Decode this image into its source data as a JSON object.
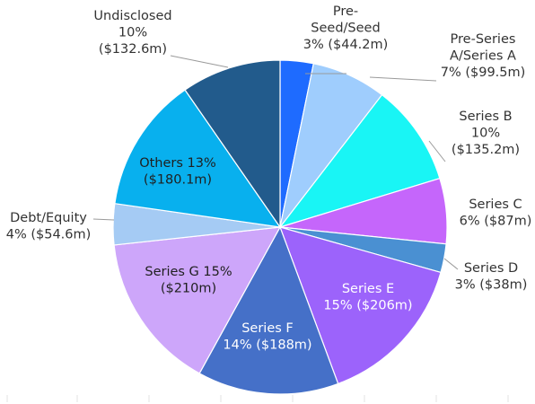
{
  "chart_data": {
    "type": "pie",
    "start_angle_deg": 0,
    "direction": "clockwise",
    "slices": [
      {
        "label": "Pre-Seed/Seed",
        "percent_label": "3%",
        "amount_label": "$44.2m",
        "value": 44.2,
        "color": "#1e6bff"
      },
      {
        "label": "Pre-Series A/Series A",
        "percent_label": "7%",
        "amount_label": "$99.5m",
        "value": 99.5,
        "color": "#9fcdfd"
      },
      {
        "label": "Series B",
        "percent_label": "10%",
        "amount_label": "$135.2m",
        "value": 135.2,
        "color": "#19f5f5"
      },
      {
        "label": "Series C",
        "percent_label": "6%",
        "amount_label": "$87m",
        "value": 87.0,
        "color": "#c566fb"
      },
      {
        "label": "Series D",
        "percent_label": "3%",
        "amount_label": "$38m",
        "value": 38.0,
        "color": "#4a90d2"
      },
      {
        "label": "Series E",
        "percent_label": "15%",
        "amount_label": "$206m",
        "value": 206.0,
        "color": "#9c63fb"
      },
      {
        "label": "Series F",
        "percent_label": "14%",
        "amount_label": "$188m",
        "value": 188.0,
        "color": "#4570c8"
      },
      {
        "label": "Series G",
        "percent_label": "15%",
        "amount_label": "$210m",
        "value": 210.0,
        "color": "#cda6fa"
      },
      {
        "label": "Debt/Equity",
        "percent_label": "4%",
        "amount_label": "$54.6m",
        "value": 54.6,
        "color": "#a5cbf4"
      },
      {
        "label": "Others",
        "percent_label": "13%",
        "amount_label": "$180.1m",
        "value": 180.1,
        "color": "#08b0ee"
      },
      {
        "label": "Undisclosed",
        "percent_label": "10%",
        "amount_label": "$132.6m",
        "value": 132.6,
        "color": "#225b8c"
      }
    ],
    "labels": [
      {
        "lines": [
          "Pre-",
          "Seed/Seed",
          "3% ($44.2m)"
        ]
      },
      {
        "lines": [
          "Pre-Series",
          "A/Series A",
          "7% ($99.5m)"
        ]
      },
      {
        "lines": [
          "Series B",
          "10%",
          "($135.2m)"
        ]
      },
      {
        "lines": [
          "Series C",
          "6% ($87m)"
        ]
      },
      {
        "lines": [
          "Series D",
          "3% ($38m)"
        ]
      },
      {
        "lines": [
          "Series E",
          "15% ($206m)"
        ]
      },
      {
        "lines": [
          "Series F",
          "14% ($188m)"
        ]
      },
      {
        "lines": [
          "Series G 15%",
          "($210m)"
        ]
      },
      {
        "lines": [
          "Debt/Equity",
          "4% ($54.6m)"
        ]
      },
      {
        "lines": [
          "Others 13%",
          "($180.1m)"
        ]
      },
      {
        "lines": [
          "Undisclosed",
          "10%",
          "($132.6m)"
        ]
      }
    ],
    "title": "",
    "legend": "none"
  }
}
